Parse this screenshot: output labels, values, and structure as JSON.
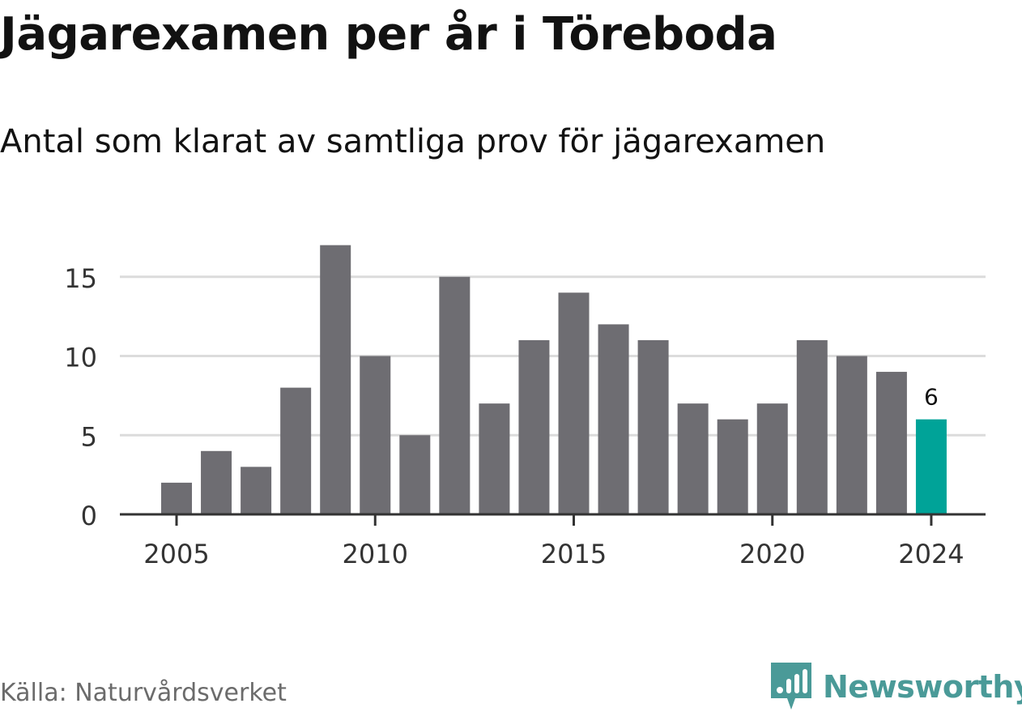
{
  "title": "Jägarexamen per år i Töreboda",
  "subtitle": "Antal som klarat av samtliga prov för jägarexamen",
  "source": "Källa: Naturvårdsverket",
  "brand": {
    "name": "Newsworthy",
    "icon": "newsworthy-logo-icon",
    "color": "#4a9a98"
  },
  "chart_data": {
    "type": "bar",
    "categories": [
      "2005",
      "2006",
      "2007",
      "2008",
      "2009",
      "2010",
      "2011",
      "2012",
      "2013",
      "2014",
      "2015",
      "2016",
      "2017",
      "2018",
      "2019",
      "2020",
      "2021",
      "2022",
      "2023",
      "2024"
    ],
    "values": [
      2,
      4,
      3,
      8,
      17,
      10,
      5,
      15,
      7,
      11,
      14,
      12,
      11,
      7,
      6,
      7,
      11,
      10,
      9,
      6
    ],
    "x_tick_labels": [
      "2005",
      "2010",
      "2015",
      "2020",
      "2024"
    ],
    "y_ticks": [
      0,
      5,
      10,
      15
    ],
    "ylim": [
      0,
      17
    ],
    "grid": true,
    "bar_color": "#6e6d72",
    "highlight_color": "#00a398",
    "highlight_category": "2024",
    "annotations": [
      {
        "category": "2024",
        "text": "6"
      }
    ]
  }
}
